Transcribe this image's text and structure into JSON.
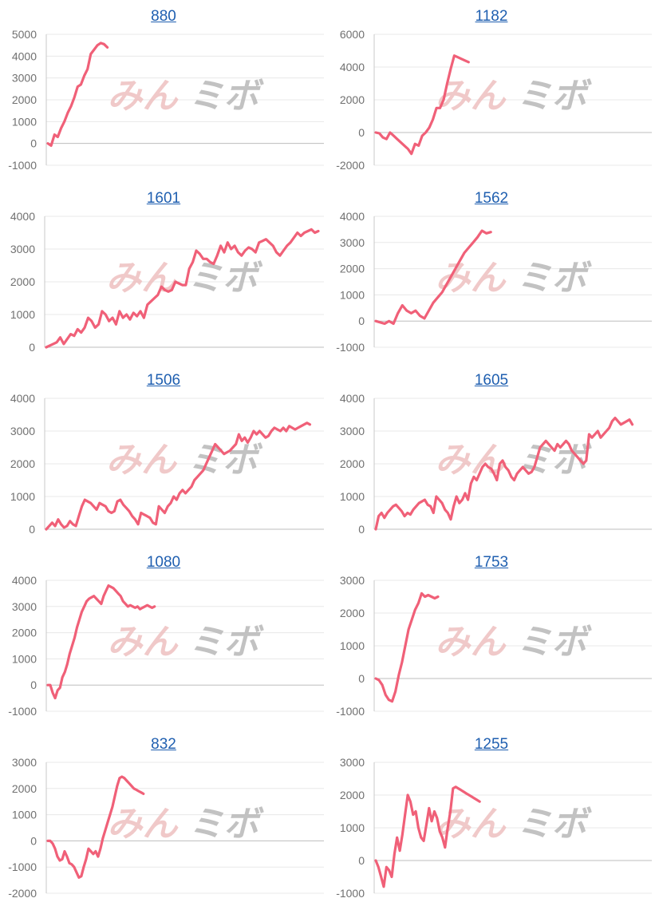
{
  "watermark": {
    "kana": "みん",
    "kanji": "ミボ",
    "kana_color": "#eec0c0",
    "kanji_color": "#b8b8b8"
  },
  "colors": {
    "line": "#f06078",
    "grid": "#e8e8e8",
    "axis": "#c8c8c8",
    "tick": "#707070",
    "title": "#1f5fb0"
  },
  "chart_data": [
    {
      "type": "line",
      "title": "880",
      "ylim": [
        -1000,
        5000
      ],
      "yticks": [
        -1000,
        0,
        1000,
        2000,
        3000,
        4000,
        5000
      ],
      "grid": true,
      "x": [
        0,
        1,
        2,
        3,
        4,
        5,
        6,
        7,
        8,
        9,
        10,
        11,
        12,
        13,
        14,
        15,
        16,
        17,
        18
      ],
      "series": [
        {
          "values": [
            0,
            -100,
            400,
            300,
            700,
            1000,
            1400,
            1700,
            2100,
            2600,
            2700,
            3100,
            3400,
            4100,
            4300,
            4500,
            4600,
            4550,
            4400
          ]
        }
      ]
    },
    {
      "type": "line",
      "title": "1182",
      "ylim": [
        -2000,
        6000
      ],
      "yticks": [
        -2000,
        0,
        2000,
        4000,
        6000
      ],
      "grid": true,
      "x": [
        0,
        1,
        2,
        3,
        4,
        5,
        6,
        7,
        8,
        9,
        10,
        11,
        12,
        13,
        14,
        15,
        16,
        17,
        18,
        19,
        20,
        21,
        22,
        23,
        24,
        25,
        26
      ],
      "series": [
        {
          "values": [
            0,
            -50,
            -300,
            -400,
            0,
            -200,
            -400,
            -600,
            -800,
            -1000,
            -1300,
            -700,
            -800,
            -200,
            0,
            300,
            800,
            1500,
            1500,
            2000,
            3000,
            3900,
            4700,
            4600,
            4500,
            4400,
            4300
          ]
        }
      ]
    },
    {
      "type": "line",
      "title": "1601",
      "ylim": [
        0,
        4000
      ],
      "yticks": [
        0,
        1000,
        2000,
        3000,
        4000
      ],
      "grid": true,
      "x": [
        0,
        1,
        2,
        3,
        4,
        5,
        6,
        7,
        8,
        9,
        10,
        11,
        12,
        13,
        14,
        15,
        16,
        17,
        18,
        19,
        20,
        21,
        22,
        23,
        24,
        25,
        26,
        27,
        28,
        29,
        30,
        31,
        32,
        33,
        34,
        35,
        36,
        37,
        38,
        39,
        40,
        41,
        42,
        43,
        44,
        45,
        46,
        47,
        48,
        49,
        50,
        51,
        52,
        53,
        54,
        55,
        56,
        57,
        58,
        59,
        60,
        61,
        62,
        63,
        64,
        65,
        66,
        67,
        68,
        69,
        70,
        71,
        72,
        73,
        74,
        75,
        76,
        77,
        78
      ],
      "series": [
        {
          "values": [
            0,
            50,
            100,
            150,
            300,
            100,
            250,
            400,
            350,
            550,
            450,
            600,
            900,
            800,
            600,
            700,
            1100,
            1000,
            800,
            900,
            700,
            1100,
            900,
            1000,
            850,
            1050,
            950,
            1100,
            900,
            1300,
            1400,
            1500,
            1600,
            1850,
            1750,
            1700,
            1750,
            2000,
            1950,
            1900,
            1900,
            2400,
            2600,
            2950,
            2850,
            2700,
            2700,
            2600,
            2550,
            2800,
            3100,
            2900,
            3200,
            3000,
            3100,
            2900,
            2800,
            2950,
            3050,
            3000,
            2900,
            3200,
            3250,
            3300,
            3200,
            3100,
            2900,
            2800,
            2950,
            3100,
            3200,
            3350,
            3500,
            3400,
            3500,
            3550,
            3600,
            3500,
            3550
          ]
        }
      ]
    },
    {
      "type": "line",
      "title": "1562",
      "ylim": [
        -1000,
        4000
      ],
      "yticks": [
        -1000,
        0,
        1000,
        2000,
        3000,
        4000
      ],
      "grid": true,
      "x": [
        0,
        1,
        2,
        3,
        4,
        5,
        6,
        7,
        8,
        9,
        10,
        11,
        12,
        13,
        14,
        15,
        16,
        17,
        18,
        19,
        20,
        21,
        22,
        23,
        24,
        25,
        26
      ],
      "series": [
        {
          "values": [
            0,
            -50,
            -100,
            0,
            -100,
            300,
            600,
            400,
            300,
            400,
            200,
            100,
            400,
            700,
            900,
            1100,
            1400,
            1700,
            2000,
            2300,
            2600,
            2800,
            3000,
            3200,
            3450,
            3350,
            3400
          ]
        }
      ]
    },
    {
      "type": "line",
      "title": "1506",
      "ylim": [
        0,
        4000
      ],
      "yticks": [
        0,
        1000,
        2000,
        3000,
        4000
      ],
      "grid": true,
      "x": [
        0,
        1,
        2,
        3,
        4,
        5,
        6,
        7,
        8,
        9,
        10,
        11,
        12,
        13,
        14,
        15,
        16,
        17,
        18,
        19,
        20,
        21,
        22,
        23,
        24,
        25,
        26,
        27,
        28,
        29,
        30,
        31,
        32,
        33,
        34,
        35,
        36,
        37,
        38,
        39,
        40,
        41,
        42,
        43,
        44,
        45,
        46,
        47,
        48,
        49,
        50,
        51,
        52,
        53,
        54,
        55,
        56,
        57,
        58,
        59,
        60,
        61,
        62,
        63,
        64,
        65,
        66,
        67,
        68,
        69,
        70,
        71,
        72,
        73,
        74,
        75,
        76,
        77,
        78,
        79,
        80,
        81,
        82,
        83,
        84,
        85,
        86,
        87,
        88,
        89
      ],
      "series": [
        {
          "values": [
            0,
            100,
            200,
            100,
            300,
            150,
            50,
            100,
            250,
            150,
            100,
            400,
            700,
            900,
            850,
            800,
            700,
            600,
            800,
            750,
            700,
            550,
            500,
            550,
            850,
            900,
            750,
            650,
            550,
            400,
            300,
            150,
            500,
            450,
            400,
            350,
            200,
            150,
            700,
            600,
            500,
            700,
            800,
            1000,
            900,
            1100,
            1200,
            1100,
            1200,
            1300,
            1500,
            1600,
            1700,
            1800,
            2000,
            2200,
            2400,
            2600,
            2500,
            2400,
            2300,
            2350,
            2400,
            2500,
            2600,
            2900,
            2700,
            2800,
            2650,
            2800,
            3000,
            2900,
            3000,
            2900,
            2800,
            2850,
            3000,
            3100,
            3050,
            3000,
            3100,
            3000,
            3150,
            3100,
            3050,
            3100,
            3150,
            3200,
            3250,
            3200
          ]
        }
      ]
    },
    {
      "type": "line",
      "title": "1605",
      "ylim": [
        0,
        4000
      ],
      "yticks": [
        0,
        1000,
        2000,
        3000,
        4000
      ],
      "grid": true,
      "x": [
        0,
        1,
        2,
        3,
        4,
        5,
        6,
        7,
        8,
        9,
        10,
        11,
        12,
        13,
        14,
        15,
        16,
        17,
        18,
        19,
        20,
        21,
        22,
        23,
        24,
        25,
        26,
        27,
        28,
        29,
        30,
        31,
        32,
        33,
        34,
        35,
        36,
        37,
        38,
        39,
        40,
        41,
        42,
        43,
        44,
        45,
        46,
        47,
        48,
        49,
        50,
        51,
        52,
        53,
        54,
        55,
        56,
        57,
        58,
        59,
        60,
        61,
        62,
        63,
        64,
        65,
        66,
        67,
        68,
        69,
        70,
        71,
        72,
        73,
        74,
        75,
        76,
        77,
        78,
        79,
        80,
        81,
        82,
        83,
        84,
        85,
        86,
        87,
        88,
        89
      ],
      "series": [
        {
          "values": [
            0,
            400,
            500,
            350,
            500,
            600,
            700,
            750,
            650,
            550,
            400,
            500,
            450,
            600,
            700,
            800,
            850,
            900,
            750,
            700,
            500,
            1000,
            900,
            800,
            600,
            500,
            300,
            700,
            1000,
            800,
            900,
            1100,
            900,
            1400,
            1600,
            1500,
            1700,
            1900,
            2000,
            1900,
            1850,
            1700,
            1500,
            2000,
            2100,
            1900,
            1800,
            1600,
            1500,
            1700,
            1800,
            1900,
            1800,
            1700,
            1750,
            1900,
            2200,
            2500,
            2600,
            2700,
            2600,
            2500,
            2400,
            2600,
            2500,
            2600,
            2700,
            2600,
            2400,
            2300,
            2200,
            2100,
            2000,
            2100,
            2900,
            2800,
            2900,
            3000,
            2800,
            2900,
            3000,
            3100,
            3300,
            3400,
            3300,
            3200,
            3250,
            3300,
            3350,
            3200
          ]
        }
      ]
    },
    {
      "type": "line",
      "title": "1080",
      "ylim": [
        -1000,
        4000
      ],
      "yticks": [
        -1000,
        0,
        1000,
        2000,
        3000,
        4000
      ],
      "grid": true,
      "x": [
        0,
        1,
        2,
        3,
        4,
        5,
        6,
        7,
        8,
        9,
        10,
        11,
        12,
        13,
        14,
        15,
        16,
        17,
        18,
        19,
        20,
        21,
        22,
        23,
        24,
        25,
        26,
        27,
        28,
        29,
        30,
        31,
        32,
        33,
        34,
        35,
        36,
        37,
        38,
        39,
        40,
        41,
        42,
        43,
        44
      ],
      "series": [
        {
          "values": [
            0,
            0,
            -300,
            -500,
            -200,
            -100,
            300,
            500,
            800,
            1200,
            1500,
            1800,
            2200,
            2500,
            2800,
            3000,
            3200,
            3300,
            3350,
            3400,
            3300,
            3200,
            3100,
            3400,
            3600,
            3800,
            3750,
            3700,
            3600,
            3500,
            3400,
            3200,
            3100,
            3000,
            3050,
            3000,
            2950,
            3000,
            2900,
            2950,
            3000,
            3050,
            3000,
            2950,
            3000
          ]
        }
      ]
    },
    {
      "type": "line",
      "title": "1753",
      "ylim": [
        -1000,
        3000
      ],
      "yticks": [
        -1000,
        0,
        1000,
        2000,
        3000
      ],
      "grid": true,
      "x": [
        0,
        1,
        2,
        3,
        4,
        5,
        6,
        7,
        8,
        9,
        10,
        11,
        12,
        13,
        14,
        15,
        16,
        17,
        18,
        19
      ],
      "series": [
        {
          "values": [
            0,
            -50,
            -200,
            -500,
            -650,
            -700,
            -400,
            100,
            500,
            1000,
            1500,
            1800,
            2100,
            2300,
            2600,
            2500,
            2550,
            2500,
            2450,
            2500
          ]
        }
      ]
    },
    {
      "type": "line",
      "title": "832",
      "ylim": [
        -2000,
        3000
      ],
      "yticks": [
        -2000,
        -1000,
        0,
        1000,
        2000,
        3000
      ],
      "grid": true,
      "x": [
        0,
        1,
        2,
        3,
        4,
        5,
        6,
        7,
        8,
        9,
        10,
        11,
        12,
        13,
        14,
        15,
        16,
        17,
        18,
        19,
        20,
        21,
        22,
        23,
        24,
        25,
        26,
        27,
        28,
        29,
        30,
        31,
        32,
        33,
        34,
        35,
        36,
        37,
        38,
        39,
        40
      ],
      "series": [
        {
          "values": [
            0,
            0,
            -100,
            -300,
            -600,
            -750,
            -700,
            -400,
            -600,
            -850,
            -900,
            -1000,
            -1200,
            -1400,
            -1350,
            -1000,
            -700,
            -300,
            -400,
            -500,
            -400,
            -600,
            -300,
            100,
            400,
            700,
            1000,
            1300,
            1700,
            2100,
            2400,
            2450,
            2400,
            2300,
            2200,
            2100,
            2000,
            1950,
            1900,
            1850,
            1800
          ]
        }
      ]
    },
    {
      "type": "line",
      "title": "1255",
      "ylim": [
        -1000,
        3000
      ],
      "yticks": [
        -1000,
        0,
        1000,
        2000,
        3000
      ],
      "grid": true,
      "x": [
        0,
        1,
        2,
        3,
        4,
        5,
        6,
        7,
        8,
        9,
        10,
        11,
        12,
        13,
        14,
        15,
        16,
        17,
        18,
        19,
        20,
        21,
        22,
        23,
        24,
        25,
        26,
        27,
        28,
        29,
        30,
        31,
        32,
        33,
        34,
        35,
        36,
        37,
        38,
        39
      ],
      "series": [
        {
          "values": [
            0,
            -200,
            -500,
            -800,
            -200,
            -300,
            -500,
            200,
            700,
            300,
            800,
            1400,
            2000,
            1800,
            1400,
            1500,
            1000,
            700,
            600,
            1100,
            1600,
            1200,
            1500,
            1300,
            900,
            700,
            400,
            1000,
            1500,
            2200,
            2250,
            2200,
            2150,
            2100,
            2050,
            2000,
            1950,
            1900,
            1850,
            1800
          ]
        }
      ]
    }
  ]
}
